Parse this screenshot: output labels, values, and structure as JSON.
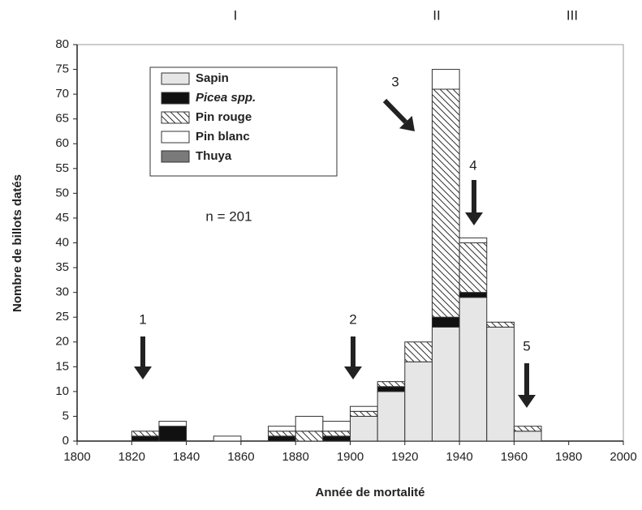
{
  "chart_data": {
    "type": "stacked-histogram",
    "x_label": "Année de mortalité",
    "y_label": "Nombre de billots datés",
    "bins": [
      1800,
      1810,
      1820,
      1830,
      1840,
      1850,
      1860,
      1870,
      1880,
      1890,
      1900,
      1910,
      1920,
      1930,
      1940,
      1950,
      1960,
      1970,
      1980,
      1990,
      2000
    ],
    "series": [
      {
        "name": "Sapin",
        "color": "#e6e6e6",
        "values": [
          0,
          0,
          0,
          0,
          0,
          0,
          0,
          0,
          0,
          0,
          5,
          10,
          16,
          23,
          29,
          23,
          2,
          0,
          0,
          0
        ]
      },
      {
        "name": "Picea spp.",
        "color": "#111111",
        "values": [
          0,
          0,
          1,
          3,
          0,
          0,
          0,
          1,
          0,
          1,
          0,
          1,
          0,
          2,
          1,
          0,
          0,
          0,
          0,
          0
        ]
      },
      {
        "name": "Pin rouge",
        "color": "#ffffff",
        "pattern": "hatch",
        "values": [
          0,
          0,
          1,
          0,
          0,
          0,
          0,
          1,
          2,
          1,
          1,
          1,
          4,
          46,
          10,
          1,
          1,
          0,
          0,
          0
        ]
      },
      {
        "name": "Pin blanc",
        "color": "#ffffff",
        "values": [
          0,
          0,
          0,
          1,
          0,
          1,
          0,
          1,
          3,
          2,
          1,
          0,
          0,
          4,
          1,
          0,
          0,
          0,
          0,
          0
        ]
      },
      {
        "name": "Thuya",
        "color": "#7a7a7a",
        "values": [
          0,
          0,
          0,
          0,
          0,
          0,
          0,
          0,
          0,
          0,
          0,
          0,
          0,
          0,
          0,
          0,
          0,
          0,
          0,
          0
        ]
      }
    ],
    "xlim": [
      1800,
      2000
    ],
    "xticks": [
      1800,
      1820,
      1840,
      1860,
      1880,
      1900,
      1920,
      1940,
      1960,
      1980,
      2000
    ],
    "ylim": [
      0,
      80
    ],
    "yticks": [
      0,
      5,
      10,
      15,
      20,
      25,
      30,
      35,
      40,
      45,
      50,
      55,
      60,
      65,
      70,
      75,
      80
    ],
    "periods": [
      "I",
      "II",
      "III"
    ],
    "sample_size": "n = 201",
    "annotations": [
      "1",
      "2",
      "3",
      "4",
      "5"
    ],
    "legend": "upper-left"
  }
}
